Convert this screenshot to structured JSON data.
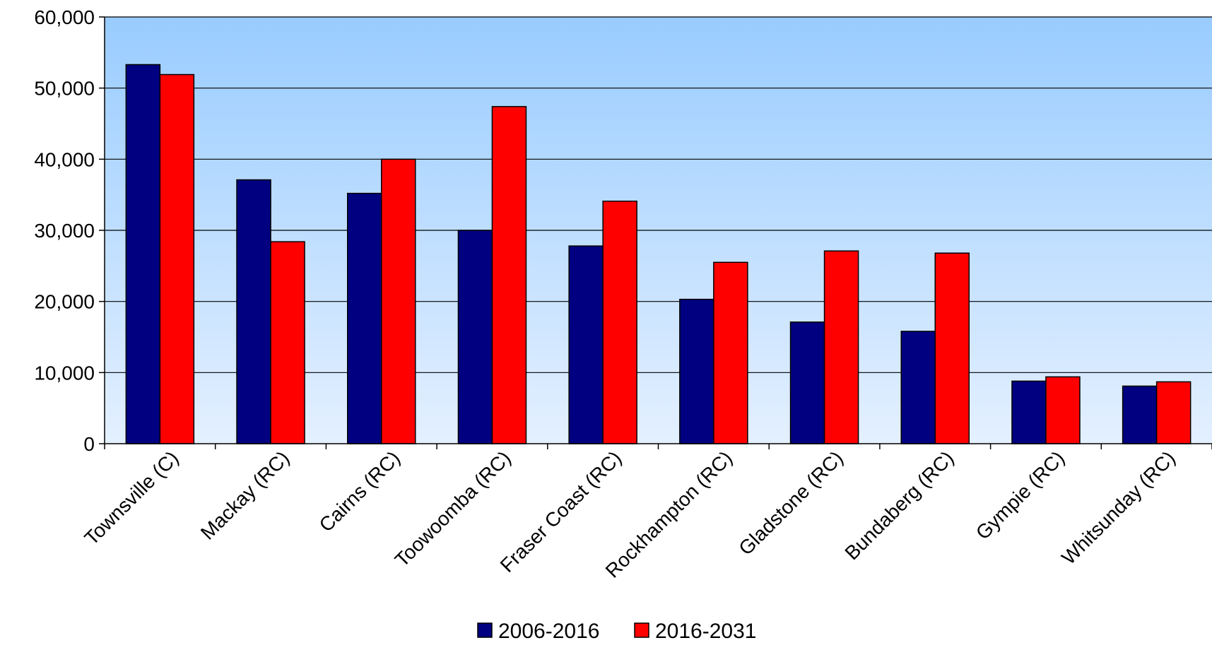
{
  "chart_data": {
    "type": "bar",
    "title": "",
    "xlabel": "",
    "ylabel": "",
    "ylim": [
      0,
      60000
    ],
    "yticks": [
      "0",
      "10,000",
      "20,000",
      "30,000",
      "40,000",
      "50,000",
      "60,000"
    ],
    "ytick_values": [
      0,
      10000,
      20000,
      30000,
      40000,
      50000,
      60000
    ],
    "grid": true,
    "legend_position": "bottom",
    "categories": [
      "Townsville (C)",
      "Mackay (RC)",
      "Cairns (RC)",
      "Toowoomba (RC)",
      "Fraser Coast (RC)",
      "Rockhampton (RC)",
      "Gladstone (RC)",
      "Bundaberg (RC)",
      "Gympie (RC)",
      "Whitsunday (RC)"
    ],
    "series": [
      {
        "name": "2006-2016",
        "color": "#000080",
        "values": [
          53300,
          37100,
          35200,
          30000,
          27800,
          20300,
          17100,
          15800,
          8800,
          8100
        ]
      },
      {
        "name": "2016-2031",
        "color": "#ff0000",
        "values": [
          51900,
          28400,
          40000,
          47400,
          34100,
          25500,
          27100,
          26800,
          9400,
          8700
        ]
      }
    ],
    "colors": {
      "plot_top": "#99ccff",
      "plot_bottom": "#e4f0ff",
      "gridline": "#000000"
    }
  }
}
